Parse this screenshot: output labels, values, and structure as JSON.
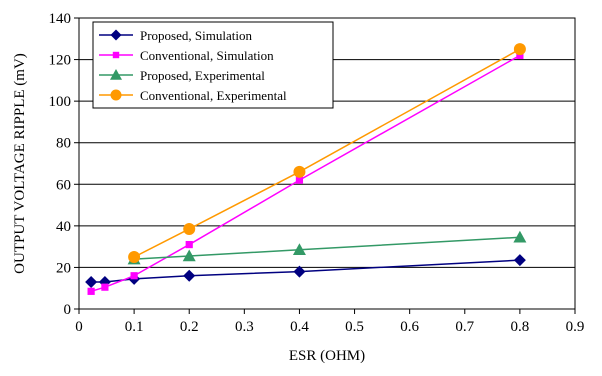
{
  "chart_data": {
    "type": "line",
    "xlabel": "ESR (OHM)",
    "ylabel": "OUTPUT VOLTAGE RIPPLE (mV)",
    "xlim": [
      0,
      0.9
    ],
    "ylim": [
      0,
      140
    ],
    "xticks": [
      "0",
      "0.1",
      "0.2",
      "0.3",
      "0.4",
      "0.5",
      "0.6",
      "0.7",
      "0.8",
      "0.9"
    ],
    "yticks": [
      "0",
      "20",
      "40",
      "60",
      "80",
      "100",
      "120",
      "140"
    ],
    "grid": "horizontal",
    "legend_position": "top-left",
    "series": [
      {
        "name": "Proposed, Simulation",
        "color": "#000080",
        "marker": "diamond",
        "x": [
          0.022,
          0.047,
          0.1,
          0.2,
          0.4,
          0.8
        ],
        "y": [
          13,
          13,
          14.5,
          16,
          18,
          23.5
        ]
      },
      {
        "name": "Conventional, Simulation",
        "color": "#ff00ff",
        "marker": "square",
        "x": [
          0.022,
          0.047,
          0.1,
          0.2,
          0.4,
          0.8
        ],
        "y": [
          8.5,
          10.5,
          16,
          31,
          62,
          122
        ]
      },
      {
        "name": "Proposed, Experimental",
        "color": "#339966",
        "marker": "triangle",
        "x": [
          0.1,
          0.2,
          0.4,
          0.8
        ],
        "y": [
          24,
          25.5,
          28.5,
          34.5
        ]
      },
      {
        "name": "Conventional, Experimental",
        "color": "#ff9900",
        "marker": "circle",
        "x": [
          0.1,
          0.2,
          0.4,
          0.8
        ],
        "y": [
          25,
          38.5,
          66,
          125
        ]
      }
    ]
  }
}
